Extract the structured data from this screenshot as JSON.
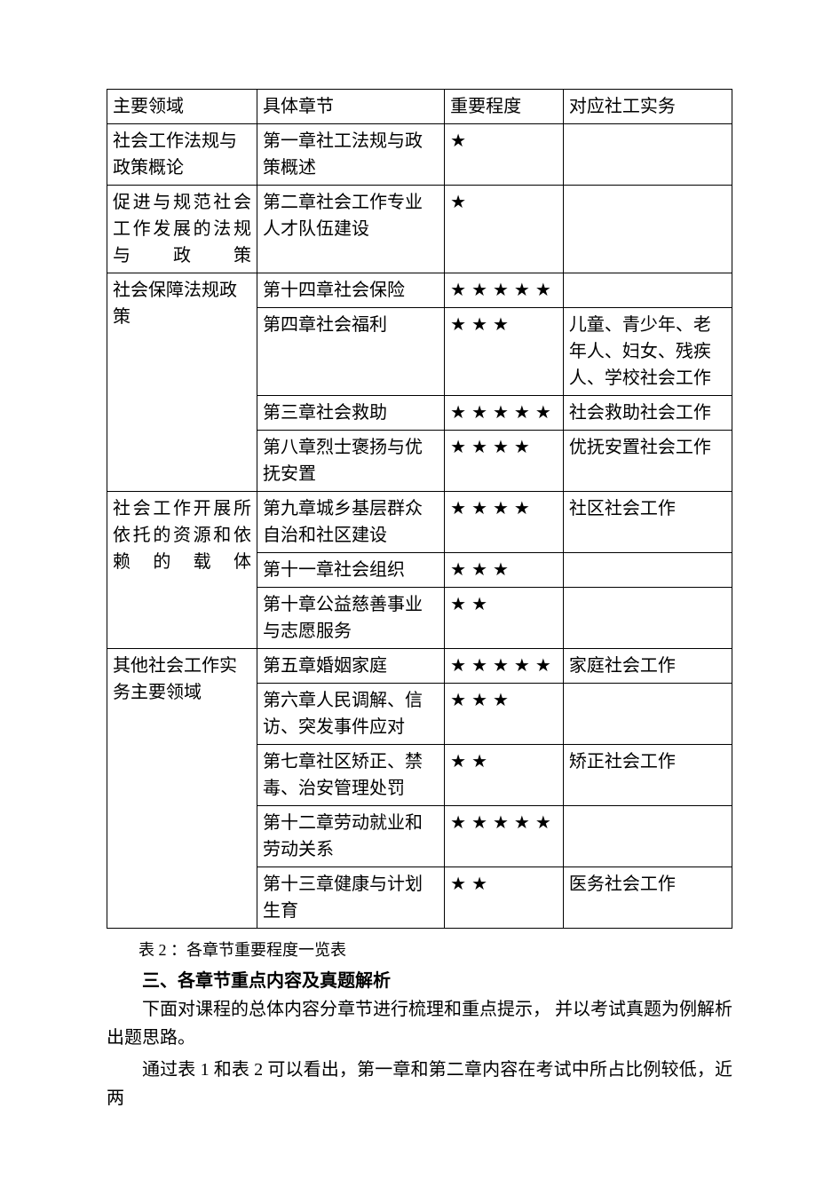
{
  "table_caption": "表 2 ：各章节重要程度一览表",
  "section_heading": "三、各章节重点内容及真题解析",
  "paragraph1": "下面对课程的总体内容分章节进行梳理和重点提示， 并以考试真题为例解析出题思路。",
  "paragraph2": "通过表 1  和表 2  可以看出，第一章和第二章内容在考试中所占比例较低，近两",
  "headers": {
    "col1": "主要领域",
    "col2": "具体章节",
    "col3": "重要程度",
    "col4": "对应社工实务"
  },
  "rows": [
    {
      "domain": "社会工作法规与政策概论",
      "chapter": "第一章社工法规与政策概述",
      "stars": "★",
      "practice": "",
      "rowspan": 1,
      "justify": false
    },
    {
      "domain": "促进与规范社会工作发展的法规与政策",
      "chapter": "第二章社会工作专业人才队伍建设",
      "stars": "★",
      "practice": "",
      "rowspan": 1,
      "justify": true
    },
    {
      "domain": "社会保障法规政策",
      "chapter": "第十四章社会保险",
      "stars": "★★★★★",
      "practice": "",
      "rowspan": 4,
      "justify": false
    },
    {
      "domain": null,
      "chapter": "第四章社会福利",
      "stars": "★★★",
      "practice": "儿童、青少年、老年人、妇女、残疾人、学校社会工作",
      "rowspan": 0,
      "justify": false
    },
    {
      "domain": null,
      "chapter": "第三章社会救助",
      "stars": "★★★★★",
      "practice": "社会救助社会工作",
      "rowspan": 0,
      "justify": false
    },
    {
      "domain": null,
      "chapter": "第八章烈士褒扬与优抚安置",
      "stars": "★★★★",
      "practice": "优抚安置社会工作",
      "rowspan": 0,
      "justify": false
    },
    {
      "domain": "社会工作开展所依托的资源和依赖的载体",
      "chapter": "第九章城乡基层群众自治和社区建设",
      "stars": "★★★★",
      "practice": "社区社会工作",
      "rowspan": 3,
      "justify": true
    },
    {
      "domain": null,
      "chapter": "第十一章社会组织",
      "stars": "★★★",
      "practice": "",
      "rowspan": 0,
      "justify": false
    },
    {
      "domain": null,
      "chapter": "第十章公益慈善事业与志愿服务",
      "stars": "★★",
      "practice": "",
      "rowspan": 0,
      "justify": false
    },
    {
      "domain": "其他社会工作实务主要领域",
      "chapter": "第五章婚姻家庭",
      "stars": "★★★★★",
      "practice": "家庭社会工作",
      "rowspan": 5,
      "justify": false
    },
    {
      "domain": null,
      "chapter": "第六章人民调解、信访、突发事件应对",
      "stars": "★★★",
      "practice": "",
      "rowspan": 0,
      "justify": false
    },
    {
      "domain": null,
      "chapter": "第七章社区矫正、禁毒、治安管理处罚",
      "stars": "★★",
      "practice": "矫正社会工作",
      "rowspan": 0,
      "justify": false
    },
    {
      "domain": null,
      "chapter": "第十二章劳动就业和劳动关系",
      "stars": "★★★★★",
      "practice": "",
      "rowspan": 0,
      "justify": false
    },
    {
      "domain": null,
      "chapter": "第十三章健康与计划生育",
      "stars": "★★",
      "practice": "医务社会工作",
      "rowspan": 0,
      "justify": false
    }
  ]
}
